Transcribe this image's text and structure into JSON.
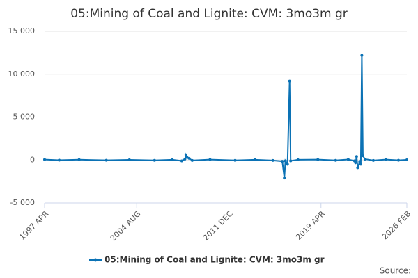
{
  "chart_data": {
    "type": "line",
    "title": "05:Mining of Coal and Lignite: CVM: 3mo3m gr",
    "source": "Source:",
    "x": [
      "1997-04",
      "1998-06",
      "2000-01",
      "2002-03",
      "2004-01",
      "2006-01",
      "2007-06",
      "2008-03",
      "2008-06",
      "2008-07",
      "2008-08",
      "2008-10",
      "2009-01",
      "2010-06",
      "2012-06",
      "2014-01",
      "2015-06",
      "2016-03",
      "2016-05",
      "2016-06",
      "2016-08",
      "2016-10",
      "2016-11",
      "2017-06",
      "2019-01",
      "2020-06",
      "2021-06",
      "2021-12",
      "2022-01",
      "2022-02",
      "2022-03",
      "2022-05",
      "2022-06",
      "2022-07",
      "2022-08",
      "2022-10",
      "2023-06",
      "2024-06",
      "2025-06",
      "2026-02"
    ],
    "series": [
      {
        "name": "05:Mining of Coal and Lignite: CVM: 3mo3m gr",
        "color": "#0b72b5",
        "values": [
          50,
          -20,
          40,
          -30,
          20,
          -40,
          30,
          -100,
          100,
          600,
          300,
          200,
          -50,
          50,
          -40,
          30,
          -50,
          -150,
          -2100,
          -100,
          -500,
          9200,
          -100,
          30,
          50,
          -40,
          60,
          -100,
          -300,
          400,
          -900,
          -200,
          -500,
          12200,
          500,
          100,
          -50,
          50,
          -30,
          20
        ]
      }
    ],
    "xlim": [
      "1997-04",
      "2026-02"
    ],
    "xticks": [
      {
        "value": "1997-04",
        "label": "1997 APR"
      },
      {
        "value": "2004-08",
        "label": "2004 AUG"
      },
      {
        "value": "2011-12",
        "label": "2011 DEC"
      },
      {
        "value": "2019-04",
        "label": "2019 APR"
      },
      {
        "value": "2026-02",
        "label": "2026 FEB"
      }
    ],
    "ylim": [
      -5000,
      15000
    ],
    "yticks": [
      {
        "value": -5000,
        "label": "-5 000"
      },
      0,
      {
        "value": 5000,
        "label": "5 000"
      },
      {
        "value": 10000,
        "label": "10 000"
      },
      {
        "value": 15000,
        "label": "15 000"
      }
    ],
    "grid": true
  }
}
